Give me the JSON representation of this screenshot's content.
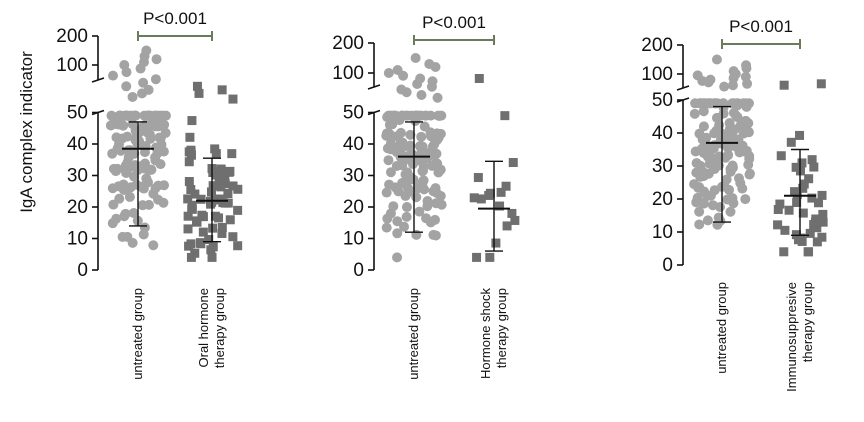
{
  "ylabel": "IgA complex indicator",
  "colors": {
    "untreated": "#a3a3a3",
    "treated": "#6f6f6f",
    "axis": "#111111",
    "bracket": "#6b7a5a"
  },
  "chart_data": [
    {
      "type": "scatter",
      "categories": [
        "untreated group",
        "Oral hormone\ntherapy group"
      ],
      "yticks": [
        "0",
        "10",
        "20",
        "30",
        "40",
        "50",
        "100",
        "200"
      ],
      "broken_axis": true,
      "pvalue": "P<0.001",
      "series": [
        {
          "name": "untreated group",
          "marker": "circle",
          "mean": 38.5,
          "sd_low": 14,
          "sd_high": 47,
          "n_below50": 140,
          "spread": 0.28,
          "extra": [
            55,
            60,
            65,
            70,
            75,
            80,
            85,
            90,
            95,
            100,
            110,
            120,
            130,
            150
          ]
        },
        {
          "name": "Oral hormone therapy group",
          "marker": "square",
          "mean": 22,
          "sd_low": 9,
          "sd_high": 35.5,
          "n_below50": 70,
          "spread": 0.26,
          "extra": [
            52,
            60,
            65,
            70
          ]
        }
      ]
    },
    {
      "type": "scatter",
      "categories": [
        "untreated group",
        "Hormone shock\ntherapy group"
      ],
      "yticks": [
        "0",
        "10",
        "20",
        "30",
        "40",
        "50",
        "100",
        "200"
      ],
      "broken_axis": true,
      "pvalue": "P<0.001",
      "series": [
        {
          "name": "untreated group",
          "marker": "circle",
          "mean": 36,
          "sd_low": 12,
          "sd_high": 47,
          "n_below50": 140,
          "spread": 0.28,
          "extra": [
            55,
            60,
            65,
            70,
            75,
            80,
            85,
            90,
            95,
            100,
            110,
            120,
            130,
            150
          ]
        },
        {
          "name": "Hormone shock therapy group",
          "marker": "square",
          "mean": 19.5,
          "sd_low": 6,
          "sd_high": 34.5,
          "n_below50": 15,
          "spread": 0.22,
          "extra": [
            49,
            90
          ]
        }
      ]
    },
    {
      "type": "scatter",
      "categories": [
        "untreated group",
        "Immunosuppresive\ntherapy group"
      ],
      "yticks": [
        "0",
        "10",
        "20",
        "30",
        "40",
        "50",
        "100",
        "200"
      ],
      "broken_axis": true,
      "pvalue": "P<0.001",
      "series": [
        {
          "name": "untreated group",
          "marker": "circle",
          "mean": 37,
          "sd_low": 13,
          "sd_high": 48,
          "n_below50": 140,
          "spread": 0.28,
          "extra": [
            55,
            60,
            65,
            70,
            75,
            80,
            85,
            90,
            95,
            100,
            110,
            120,
            130,
            150
          ]
        },
        {
          "name": "Immunosuppresive therapy group",
          "marker": "square",
          "mean": 21,
          "sd_low": 9,
          "sd_high": 35,
          "n_below50": 40,
          "spread": 0.24,
          "extra": [
            60,
            65
          ]
        }
      ]
    }
  ]
}
